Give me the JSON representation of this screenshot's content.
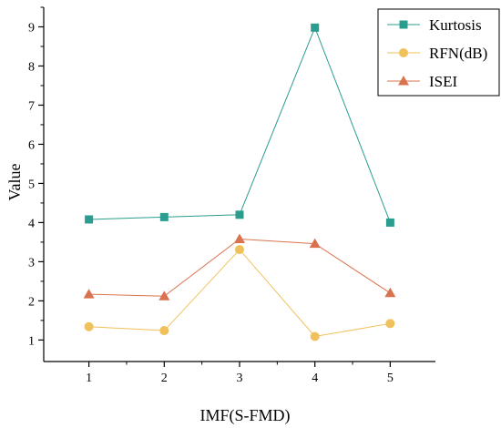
{
  "chart_data": {
    "type": "line",
    "title": "",
    "xlabel": "IMF(S-FMD)",
    "ylabel": "Value",
    "x": [
      1,
      2,
      3,
      4,
      5
    ],
    "xlim": [
      0.4,
      5.6
    ],
    "ylim": [
      0.45,
      9.5
    ],
    "xticks": [
      "1",
      "2",
      "3",
      "4",
      "5"
    ],
    "yticks": [
      "1",
      "2",
      "3",
      "4",
      "5",
      "6",
      "7",
      "8",
      "9"
    ],
    "legend_position": "top-right",
    "grid": false,
    "series": [
      {
        "name": "Kurtosis",
        "values": [
          4.08,
          4.14,
          4.2,
          8.98,
          4.0
        ],
        "color": "#2a9d8f",
        "marker": "square"
      },
      {
        "name": "RFN(dB)",
        "values": [
          1.34,
          1.24,
          3.31,
          1.09,
          1.42
        ],
        "color": "#f0c05a",
        "marker": "circle"
      },
      {
        "name": "ISEI",
        "values": [
          2.17,
          2.12,
          3.58,
          3.46,
          2.2
        ],
        "color": "#d9734f",
        "marker": "triangle"
      }
    ]
  }
}
